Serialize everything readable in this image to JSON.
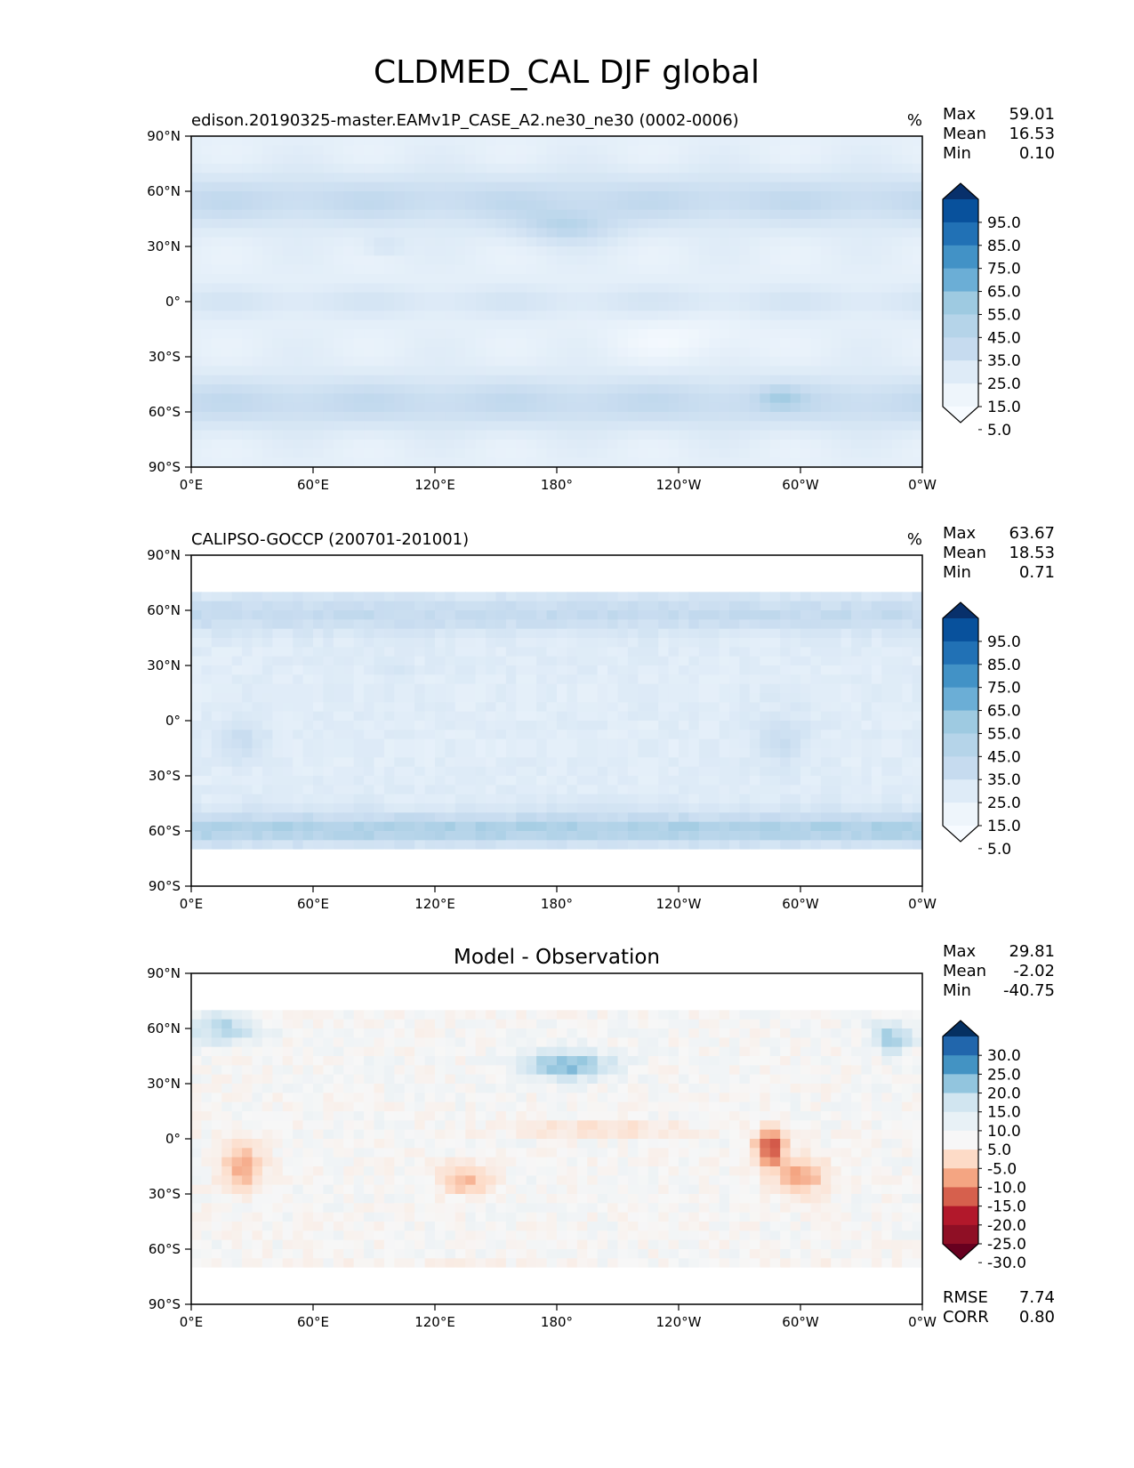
{
  "figure": {
    "title": "CLDMED_CAL DJF global"
  },
  "axis_ticks": {
    "y": [
      "90°N",
      "60°N",
      "30°N",
      "0°",
      "30°S",
      "60°S",
      "90°S"
    ],
    "x": [
      "0°E",
      "60°E",
      "120°E",
      "180°",
      "120°W",
      "60°W",
      "0°W"
    ]
  },
  "colors": {
    "sequential_blues": [
      "#f7fbff",
      "#deebf7",
      "#c6dbef",
      "#9ecae1",
      "#6baed6",
      "#4292c6",
      "#2171b5",
      "#08519c",
      "#08306b",
      "#052350"
    ],
    "diverging": [
      "#67001f",
      "#b2182b",
      "#d6604d",
      "#f4a582",
      "#fddbc7",
      "#f7f7f7",
      "#d1e5f0",
      "#92c5de",
      "#4393c3",
      "#2166ac",
      "#053061"
    ]
  },
  "chart_data": [
    {
      "type": "heatmap",
      "title": "edison.20190325-master.EAMv1P_CASE_A2.ne30_ne30 (0002-0006)",
      "units": "%",
      "stats": {
        "max_label": "Max",
        "max": "59.01",
        "mean_label": "Mean",
        "mean": "16.53",
        "min_label": "Min",
        "min": "0.10"
      },
      "colorbar_levels": [
        "95.0",
        "85.0",
        "75.0",
        "65.0",
        "55.0",
        "45.0",
        "35.0",
        "25.0",
        "15.0",
        "5.0"
      ],
      "xlim": [
        0,
        360
      ],
      "ylim": [
        -90,
        90
      ]
    },
    {
      "type": "heatmap",
      "title": "CALIPSO-GOCCP (200701-201001)",
      "units": "%",
      "stats": {
        "max_label": "Max",
        "max": "63.67",
        "mean_label": "Mean",
        "mean": "18.53",
        "min_label": "Min",
        "min": "0.71"
      },
      "colorbar_levels": [
        "95.0",
        "85.0",
        "75.0",
        "65.0",
        "55.0",
        "45.0",
        "35.0",
        "25.0",
        "15.0",
        "5.0"
      ],
      "xlim": [
        0,
        360
      ],
      "ylim": [
        -90,
        90
      ]
    },
    {
      "type": "heatmap",
      "title": "Model - Observation",
      "units": "",
      "stats": {
        "max_label": "Max",
        "max": "29.81",
        "mean_label": "Mean",
        "mean": "-2.02",
        "min_label": "Min",
        "min": "-40.75"
      },
      "colorbar_levels": [
        "30.0",
        "25.0",
        "20.0",
        "15.0",
        "10.0",
        "5.0",
        "-5.0",
        "-10.0",
        "-15.0",
        "-20.0",
        "-25.0",
        "-30.0"
      ],
      "metrics": {
        "rmse_label": "RMSE",
        "rmse": "7.74",
        "corr_label": "CORR",
        "corr": "0.80"
      },
      "xlim": [
        0,
        360
      ],
      "ylim": [
        -90,
        90
      ]
    }
  ]
}
